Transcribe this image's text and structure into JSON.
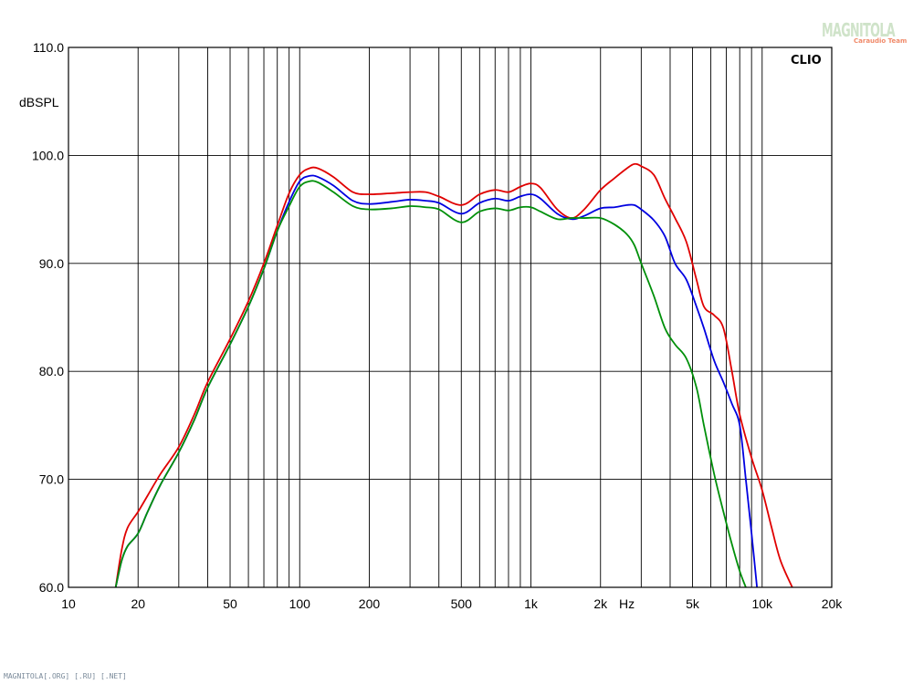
{
  "chart_data": {
    "type": "line",
    "title": "",
    "xlabel": "Hz",
    "ylabel": "dBSPL",
    "x_scale": "log",
    "xlim": [
      10,
      20000
    ],
    "ylim": [
      60,
      110
    ],
    "grid": true,
    "legend": "none",
    "x_ticks": [
      {
        "value": 10,
        "label": "10"
      },
      {
        "value": 20,
        "label": "20"
      },
      {
        "value": 50,
        "label": "50"
      },
      {
        "value": 100,
        "label": "100"
      },
      {
        "value": 200,
        "label": "200"
      },
      {
        "value": 500,
        "label": "500"
      },
      {
        "value": 1000,
        "label": "1k"
      },
      {
        "value": 2000,
        "label": "2k"
      },
      {
        "value": 5000,
        "label": "5k"
      },
      {
        "value": 10000,
        "label": "10k"
      },
      {
        "value": 20000,
        "label": "20k"
      }
    ],
    "y_ticks": [
      {
        "value": 60,
        "label": "60.0"
      },
      {
        "value": 70,
        "label": "70.0"
      },
      {
        "value": 80,
        "label": "80.0"
      },
      {
        "value": 90,
        "label": "90.0"
      },
      {
        "value": 100,
        "label": "100.0"
      },
      {
        "value": 110,
        "label": "110.0"
      }
    ],
    "series": [
      {
        "color": "#e00000",
        "x": [
          16,
          17,
          18,
          20,
          22,
          25,
          30,
          35,
          40,
          50,
          60,
          70,
          80,
          90,
          100,
          110,
          120,
          140,
          170,
          200,
          250,
          300,
          350,
          400,
          500,
          600,
          700,
          800,
          900,
          1000,
          1100,
          1300,
          1500,
          1700,
          2000,
          2300,
          2600,
          2800,
          3000,
          3400,
          3800,
          4200,
          4700,
          5200,
          5600,
          6200,
          6800,
          7400,
          8000,
          9000,
          10000,
          11000,
          12000,
          13500
        ],
        "y": [
          60,
          63.5,
          65.5,
          67,
          68.5,
          70.5,
          73,
          76,
          79,
          83,
          86.5,
          90,
          93.5,
          96.5,
          98.2,
          98.8,
          98.8,
          98,
          96.6,
          96.4,
          96.5,
          96.6,
          96.6,
          96.2,
          95.4,
          96.4,
          96.8,
          96.6,
          97.1,
          97.4,
          97,
          95,
          94.2,
          95,
          96.8,
          97.9,
          98.8,
          99.2,
          99,
          98.2,
          96,
          94.2,
          92,
          88.5,
          86,
          85.2,
          84,
          80,
          76,
          72,
          69,
          65.5,
          62.5,
          60
        ]
      },
      {
        "color": "#0000e0",
        "x": [
          16,
          17,
          18,
          20,
          22,
          25,
          30,
          35,
          40,
          50,
          60,
          70,
          80,
          90,
          100,
          110,
          120,
          140,
          170,
          200,
          250,
          300,
          350,
          400,
          500,
          600,
          700,
          800,
          900,
          1000,
          1100,
          1300,
          1500,
          1700,
          2000,
          2300,
          2600,
          2800,
          3000,
          3400,
          3800,
          4200,
          4700,
          5200,
          5600,
          6200,
          6800,
          7400,
          8000,
          8500,
          9000,
          9500
        ],
        "y": [
          60,
          62.5,
          63.8,
          65,
          67,
          69.5,
          72.5,
          75.5,
          78.5,
          82.5,
          86,
          89.5,
          93,
          95.7,
          97.6,
          98.1,
          98,
          97.2,
          95.8,
          95.5,
          95.7,
          95.9,
          95.8,
          95.6,
          94.6,
          95.6,
          96,
          95.8,
          96.2,
          96.4,
          96,
          94.6,
          94.1,
          94.4,
          95.1,
          95.2,
          95.4,
          95.4,
          95,
          94,
          92.5,
          90,
          88.5,
          86,
          84,
          81,
          79,
          77,
          75,
          70,
          65,
          60
        ]
      },
      {
        "color": "#00900a",
        "x": [
          16,
          17,
          18,
          20,
          22,
          25,
          30,
          35,
          40,
          50,
          60,
          70,
          80,
          90,
          100,
          110,
          120,
          140,
          170,
          200,
          250,
          300,
          350,
          400,
          500,
          600,
          700,
          800,
          900,
          1000,
          1100,
          1300,
          1500,
          1700,
          2000,
          2300,
          2600,
          2800,
          3000,
          3400,
          3800,
          4200,
          4700,
          5200,
          5600,
          6200,
          6800,
          7400,
          8000,
          8500
        ],
        "y": [
          60,
          62.5,
          63.8,
          65,
          67,
          69.5,
          72.5,
          75.5,
          78.5,
          82.5,
          86,
          89.5,
          93,
          95.3,
          97.1,
          97.6,
          97.5,
          96.6,
          95.3,
          95,
          95.1,
          95.3,
          95.2,
          95,
          93.8,
          94.8,
          95.1,
          94.9,
          95.2,
          95.2,
          94.8,
          94.1,
          94.2,
          94.2,
          94.2,
          93.6,
          92.7,
          91.7,
          90,
          87,
          84,
          82.5,
          81.2,
          78.5,
          75,
          70.5,
          67,
          64,
          61.5,
          60
        ]
      }
    ]
  },
  "brand_label": "CLIO",
  "watermark": {
    "main": "MAGNITOLA",
    "sub": "Caraudio Team"
  },
  "footer_text": "MAGNITOLA[.ORG] [.RU] [.NET]"
}
